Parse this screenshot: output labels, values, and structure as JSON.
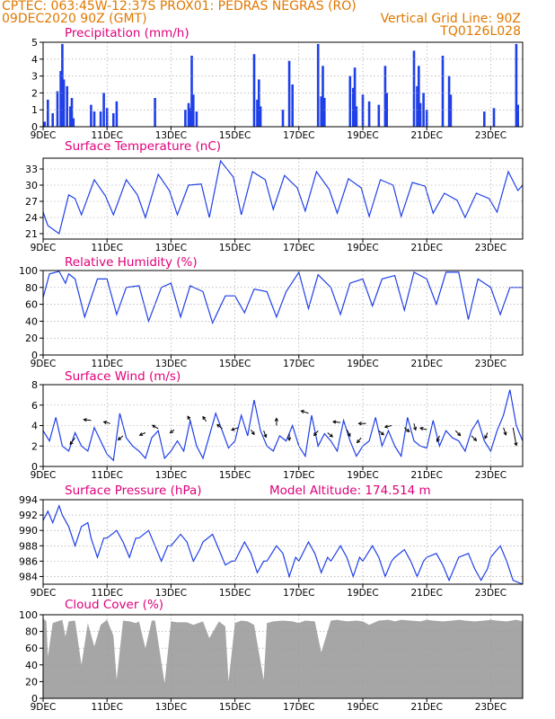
{
  "header": {
    "line1_left": "CPTEC:   063:45W-12:37S   PROX01: PEDRAS NEGRAS (RO)",
    "line2_left": "09DEC2020 90Z (GMT)",
    "line2_right": "Vertical Grid Line: 90Z",
    "line3_right": "TQ0126L028"
  },
  "colors": {
    "header": "#e07800",
    "title": "#e0007a",
    "series": "#1f3fe8",
    "cloud": "#a6a6a6",
    "wind_arrow": "#000000"
  },
  "x_ticks": [
    "9DEC",
    "11DEC",
    "13DEC",
    "15DEC",
    "17DEC",
    "19DEC",
    "21DEC",
    "23DEC"
  ],
  "x_tick_days": [
    0,
    2,
    4,
    6,
    8,
    10,
    12,
    14
  ],
  "x_range_days": [
    0,
    15
  ],
  "chart_data": [
    {
      "id": "precip",
      "type": "bar",
      "title": "Precipitation (mm/h)",
      "ylim": [
        0,
        5
      ],
      "yticks": [
        0,
        1,
        2,
        3,
        4,
        5
      ],
      "x": [
        0.05,
        0.15,
        0.3,
        0.45,
        0.55,
        0.6,
        0.65,
        0.75,
        0.85,
        0.9,
        0.95,
        1.5,
        1.6,
        1.8,
        1.9,
        2.0,
        2.2,
        2.3,
        3.5,
        4.45,
        4.55,
        4.6,
        4.65,
        4.7,
        4.8,
        6.6,
        6.7,
        6.75,
        6.8,
        7.5,
        7.7,
        7.8,
        8.6,
        8.7,
        8.75,
        8.8,
        9.6,
        9.7,
        9.75,
        9.8,
        10.0,
        10.2,
        10.5,
        10.7,
        10.75,
        11.6,
        11.7,
        11.75,
        11.8,
        11.9,
        12.0,
        12.5,
        12.7,
        12.75,
        13.8,
        14.1,
        14.8,
        14.85
      ],
      "values": [
        0.3,
        1.6,
        0.8,
        2.1,
        3.3,
        4.9,
        2.8,
        2.4,
        1.2,
        1.7,
        0.5,
        1.3,
        0.9,
        0.9,
        2.0,
        1.1,
        0.8,
        1.5,
        1.7,
        1.0,
        1.4,
        1.1,
        4.2,
        1.9,
        0.9,
        4.3,
        1.6,
        2.8,
        1.2,
        1.0,
        3.9,
        2.5,
        4.9,
        1.8,
        3.6,
        1.7,
        3.0,
        2.3,
        3.5,
        1.2,
        1.9,
        1.5,
        1.3,
        3.6,
        2.0,
        4.5,
        2.4,
        3.6,
        1.4,
        2.0,
        1.0,
        4.2,
        3.0,
        1.9,
        0.9,
        1.1,
        4.9,
        1.3
      ]
    },
    {
      "id": "temp",
      "type": "line",
      "title": "Surface Temperature (nC)",
      "ylim": [
        20,
        35
      ],
      "yticks": [
        21,
        24,
        27,
        30,
        33
      ],
      "x": [
        0,
        0.15,
        0.5,
        0.8,
        1,
        1.2,
        1.6,
        1.95,
        2.2,
        2.6,
        2.95,
        3.2,
        3.6,
        3.95,
        4.2,
        4.55,
        4.95,
        5.2,
        5.55,
        5.95,
        6.2,
        6.55,
        6.95,
        7.2,
        7.55,
        7.95,
        8.2,
        8.55,
        8.95,
        9.2,
        9.55,
        9.95,
        10.2,
        10.55,
        10.95,
        11.2,
        11.55,
        11.95,
        12.2,
        12.55,
        12.95,
        13.2,
        13.55,
        13.95,
        14.2,
        14.55,
        14.85,
        15
      ],
      "y": [
        25,
        22.5,
        21,
        28.2,
        27.5,
        24.5,
        31,
        28,
        24.5,
        31,
        28.2,
        24,
        32,
        29,
        24.5,
        30,
        30.2,
        24,
        34.5,
        31.5,
        24.5,
        32.5,
        31,
        25.5,
        31.8,
        29.5,
        25.2,
        32.5,
        29.2,
        24.8,
        31.2,
        29.5,
        24.2,
        31,
        30,
        24.2,
        30.5,
        29.8,
        24.8,
        28.5,
        27.2,
        24,
        28.5,
        27.5,
        25,
        32.5,
        29,
        30
      ]
    },
    {
      "id": "rh",
      "type": "line",
      "title": "Relative Humidity (%)",
      "ylim": [
        0,
        100
      ],
      "yticks": [
        0,
        20,
        40,
        60,
        80,
        100
      ],
      "x": [
        0,
        0.2,
        0.5,
        0.7,
        0.8,
        1.0,
        1.3,
        1.7,
        2.0,
        2.3,
        2.6,
        3.0,
        3.3,
        3.7,
        4.0,
        4.3,
        4.6,
        5.0,
        5.3,
        5.7,
        6.0,
        6.3,
        6.6,
        7.0,
        7.3,
        7.6,
        8.0,
        8.3,
        8.6,
        9.0,
        9.3,
        9.6,
        10.0,
        10.3,
        10.6,
        11.0,
        11.3,
        11.6,
        12.0,
        12.3,
        12.6,
        13.0,
        13.3,
        13.6,
        14.0,
        14.3,
        14.6,
        15.0
      ],
      "y": [
        68,
        96,
        99,
        85,
        96,
        90,
        45,
        90,
        90,
        48,
        80,
        82,
        40,
        80,
        85,
        45,
        82,
        75,
        38,
        70,
        70,
        50,
        78,
        75,
        45,
        75,
        98,
        55,
        95,
        80,
        48,
        85,
        90,
        58,
        90,
        94,
        53,
        98,
        90,
        60,
        98,
        98,
        42,
        90,
        80,
        48,
        80,
        80
      ]
    },
    {
      "id": "wind",
      "type": "line",
      "title": "Surface Wind (m/s)",
      "ylim": [
        0,
        8
      ],
      "yticks": [
        0,
        2,
        4,
        6,
        8
      ],
      "x": [
        0,
        0.2,
        0.4,
        0.6,
        0.8,
        1.0,
        1.2,
        1.4,
        1.6,
        1.8,
        2.0,
        2.2,
        2.4,
        2.6,
        2.8,
        3.0,
        3.2,
        3.4,
        3.6,
        3.8,
        4.0,
        4.2,
        4.4,
        4.6,
        4.8,
        5.0,
        5.2,
        5.4,
        5.6,
        5.8,
        6.0,
        6.2,
        6.4,
        6.6,
        6.8,
        7.0,
        7.2,
        7.4,
        7.6,
        7.8,
        8.0,
        8.2,
        8.4,
        8.6,
        8.8,
        9.0,
        9.2,
        9.4,
        9.6,
        9.8,
        10.0,
        10.2,
        10.4,
        10.6,
        10.8,
        11.0,
        11.2,
        11.4,
        11.6,
        11.8,
        12.0,
        12.2,
        12.4,
        12.6,
        12.8,
        13.0,
        13.2,
        13.4,
        13.6,
        13.8,
        14.0,
        14.2,
        14.4,
        14.6,
        14.8,
        15.0
      ],
      "y": [
        3.5,
        2.5,
        4.8,
        2.0,
        1.5,
        3.3,
        2.0,
        1.5,
        3.8,
        2.5,
        1.2,
        0.6,
        5.2,
        2.8,
        2.0,
        1.5,
        0.8,
        2.8,
        3.5,
        0.8,
        1.5,
        2.5,
        1.5,
        4.5,
        2.0,
        0.8,
        3.0,
        5.2,
        3.5,
        1.8,
        2.5,
        5.0,
        3.0,
        6.5,
        3.5,
        2.0,
        1.5,
        3.0,
        2.5,
        4.0,
        2.0,
        1.0,
        5.0,
        2.0,
        3.2,
        2.5,
        1.5,
        4.5,
        2.5,
        1.0,
        2.0,
        2.5,
        4.8,
        2.0,
        3.5,
        2.0,
        1.0,
        4.8,
        2.5,
        2.0,
        1.8,
        4.5,
        2.0,
        3.5,
        2.8,
        2.5,
        1.5,
        3.5,
        4.5,
        2.5,
        1.5,
        3.5,
        5.0,
        7.5,
        4.0,
        2.5
      ],
      "arrows": [
        {
          "x": 1.0,
          "y": 2.8,
          "u": -0.6,
          "v": -0.8
        },
        {
          "x": 1.5,
          "y": 4.5,
          "u": -0.9,
          "v": 0.1
        },
        {
          "x": 2.1,
          "y": 4.2,
          "u": -0.8,
          "v": 0.2
        },
        {
          "x": 2.5,
          "y": 3.0,
          "u": -0.6,
          "v": -0.5
        },
        {
          "x": 3.2,
          "y": 3.3,
          "u": -0.7,
          "v": -0.3
        },
        {
          "x": 3.6,
          "y": 3.7,
          "u": -0.7,
          "v": 0.4
        },
        {
          "x": 4.1,
          "y": 3.6,
          "u": -0.5,
          "v": -0.4
        },
        {
          "x": 4.6,
          "y": 4.5,
          "u": -0.3,
          "v": 0.5
        },
        {
          "x": 5.1,
          "y": 4.4,
          "u": -0.4,
          "v": 0.6
        },
        {
          "x": 5.6,
          "y": 3.7,
          "u": -0.6,
          "v": 0.5
        },
        {
          "x": 6.1,
          "y": 3.8,
          "u": -0.8,
          "v": -0.3
        },
        {
          "x": 6.5,
          "y": 3.6,
          "u": 0.4,
          "v": -0.6
        },
        {
          "x": 6.9,
          "y": 3.5,
          "u": 0.3,
          "v": -0.8
        },
        {
          "x": 7.3,
          "y": 4.0,
          "u": 0.0,
          "v": 0.9
        },
        {
          "x": 7.7,
          "y": 3.2,
          "u": 0.0,
          "v": -0.8
        },
        {
          "x": 8.3,
          "y": 5.2,
          "u": -0.9,
          "v": 0.3
        },
        {
          "x": 8.6,
          "y": 3.5,
          "u": -0.5,
          "v": -0.6
        },
        {
          "x": 8.9,
          "y": 3.3,
          "u": 0.6,
          "v": -0.5
        },
        {
          "x": 9.3,
          "y": 4.3,
          "u": -0.9,
          "v": 0.1
        },
        {
          "x": 9.5,
          "y": 3.6,
          "u": 0.4,
          "v": -0.8
        },
        {
          "x": 9.95,
          "y": 2.8,
          "u": -0.5,
          "v": -0.6
        },
        {
          "x": 10.1,
          "y": 4.2,
          "u": -0.9,
          "v": 0.0
        },
        {
          "x": 10.5,
          "y": 3.5,
          "u": 0.6,
          "v": -0.5
        },
        {
          "x": 10.9,
          "y": 4.0,
          "u": -0.8,
          "v": -0.2
        },
        {
          "x": 11.3,
          "y": 3.8,
          "u": 0.6,
          "v": -0.5
        },
        {
          "x": 11.6,
          "y": 4.2,
          "u": 0.2,
          "v": -0.8
        },
        {
          "x": 12.0,
          "y": 3.6,
          "u": -0.8,
          "v": 0.2
        },
        {
          "x": 12.4,
          "y": 3.0,
          "u": -0.3,
          "v": -0.7
        },
        {
          "x": 12.9,
          "y": 3.5,
          "u": 0.6,
          "v": -0.6
        },
        {
          "x": 13.4,
          "y": 3.0,
          "u": 0.6,
          "v": -0.6
        },
        {
          "x": 13.9,
          "y": 3.3,
          "u": -0.3,
          "v": -0.7
        },
        {
          "x": 14.4,
          "y": 3.8,
          "u": 0.3,
          "v": -0.9
        },
        {
          "x": 14.7,
          "y": 3.8,
          "u": 0.4,
          "v": -2.2
        }
      ]
    },
    {
      "id": "pres",
      "type": "line",
      "title": "Surface Pressure (hPa)",
      "annotation": "Model Altitude: 174.514 m",
      "ylim": [
        983,
        994
      ],
      "yticks": [
        984,
        986,
        988,
        990,
        992,
        994
      ],
      "x": [
        0,
        0.15,
        0.3,
        0.5,
        0.6,
        0.8,
        1.0,
        1.2,
        1.4,
        1.5,
        1.7,
        1.9,
        2.0,
        2.3,
        2.5,
        2.7,
        2.9,
        3.0,
        3.3,
        3.5,
        3.7,
        3.9,
        4.0,
        4.3,
        4.5,
        4.7,
        4.9,
        5.0,
        5.3,
        5.5,
        5.7,
        5.9,
        6.0,
        6.3,
        6.5,
        6.7,
        6.9,
        7.0,
        7.3,
        7.5,
        7.7,
        7.9,
        8.0,
        8.3,
        8.5,
        8.7,
        8.9,
        9.0,
        9.3,
        9.5,
        9.7,
        9.9,
        10.0,
        10.3,
        10.5,
        10.7,
        10.9,
        11.0,
        11.3,
        11.5,
        11.7,
        11.9,
        12.0,
        12.3,
        12.5,
        12.7,
        12.9,
        13.0,
        13.3,
        13.5,
        13.7,
        13.9,
        14.0,
        14.3,
        14.5,
        14.7,
        15.0
      ],
      "y": [
        991.3,
        992.5,
        991.0,
        993.2,
        992.0,
        990.5,
        988.0,
        990.5,
        991.0,
        989.0,
        986.5,
        989.0,
        989.0,
        990.0,
        988.5,
        986.5,
        989.0,
        989.0,
        990.0,
        988.0,
        986.0,
        988.0,
        988.0,
        989.5,
        988.5,
        986.0,
        987.5,
        988.5,
        989.5,
        987.5,
        985.5,
        986.0,
        986.0,
        988.5,
        987.0,
        984.5,
        986.0,
        986.0,
        988.0,
        987.0,
        984.0,
        986.5,
        986.0,
        988.5,
        987.0,
        984.5,
        986.5,
        986.0,
        988.0,
        986.5,
        984.0,
        986.5,
        986.0,
        988.0,
        986.5,
        984.0,
        986.0,
        986.5,
        987.5,
        986.0,
        984.0,
        986.0,
        986.5,
        987.0,
        985.5,
        983.5,
        985.5,
        986.5,
        987.0,
        985.0,
        983.5,
        985.0,
        986.5,
        988.0,
        986.0,
        983.5,
        983.0
      ]
    },
    {
      "id": "cloud",
      "type": "area",
      "title": "Cloud Cover (%)",
      "ylim": [
        0,
        100
      ],
      "yticks": [
        0,
        20,
        40,
        60,
        80,
        100
      ],
      "x": [
        0,
        0.1,
        0.15,
        0.3,
        0.6,
        0.7,
        0.8,
        1.0,
        1.2,
        1.4,
        1.6,
        1.8,
        2.0,
        2.2,
        2.3,
        2.5,
        2.7,
        2.9,
        3.0,
        3.2,
        3.4,
        3.5,
        3.8,
        4.0,
        4.2,
        4.5,
        4.7,
        5.0,
        5.2,
        5.5,
        5.7,
        5.8,
        6.0,
        6.2,
        6.4,
        6.6,
        6.9,
        7.0,
        7.2,
        7.5,
        7.8,
        8.0,
        8.2,
        8.5,
        8.7,
        9.0,
        9.2,
        9.5,
        9.8,
        10.0,
        10.2,
        10.5,
        10.8,
        11.0,
        11.2,
        11.5,
        11.8,
        12.0,
        12.2,
        12.5,
        12.8,
        13.0,
        13.2,
        13.5,
        13.8,
        14.0,
        14.2,
        14.5,
        14.8,
        15.0
      ],
      "y": [
        96,
        92,
        50,
        90,
        94,
        74,
        92,
        93,
        40,
        90,
        62,
        88,
        94,
        75,
        22,
        93,
        92,
        90,
        92,
        60,
        93,
        93,
        18,
        92,
        91,
        91,
        88,
        92,
        72,
        92,
        86,
        20,
        90,
        93,
        92,
        88,
        22,
        90,
        92,
        93,
        92,
        90,
        93,
        92,
        55,
        93,
        94,
        92,
        93,
        92,
        88,
        93,
        94,
        92,
        94,
        93,
        92,
        94,
        93,
        92,
        93,
        94,
        93,
        92,
        93,
        94,
        93,
        92,
        94,
        92
      ]
    }
  ]
}
